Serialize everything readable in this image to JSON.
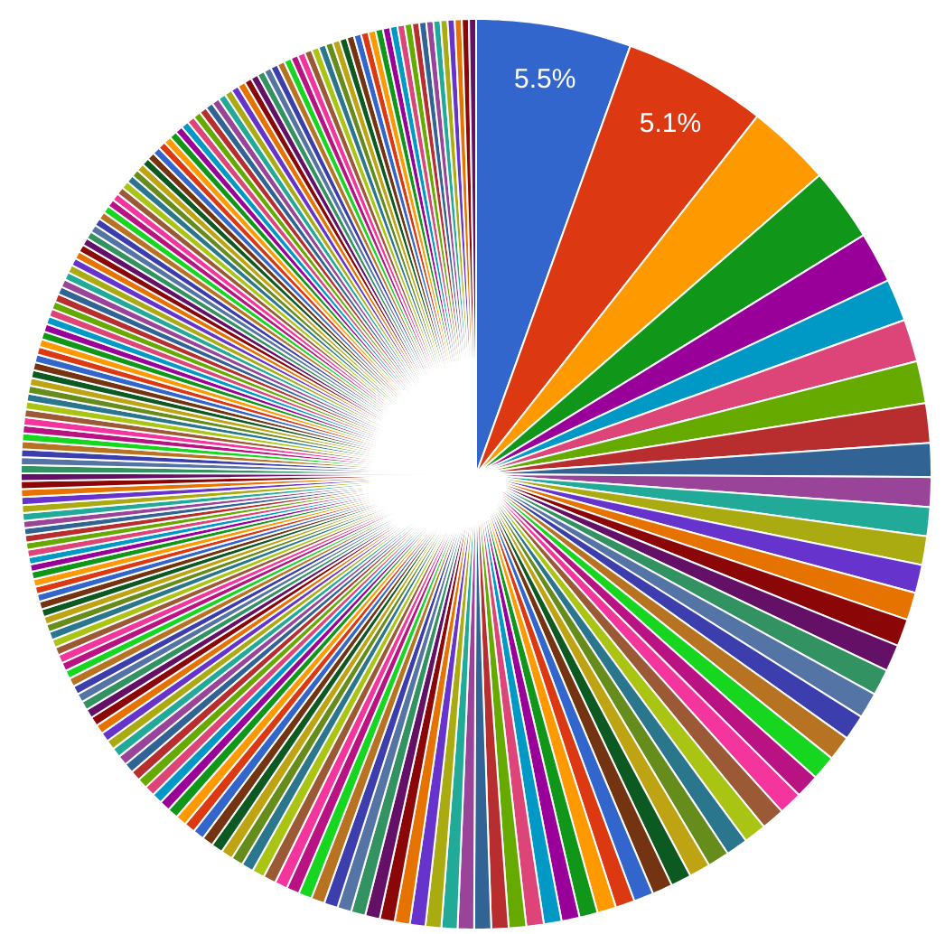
{
  "chart_data": {
    "type": "pie",
    "categories": [
      null,
      null,
      null,
      null,
      null,
      null,
      null,
      null,
      null,
      null,
      null,
      null,
      null,
      null,
      null,
      null,
      null,
      null,
      null,
      null,
      null,
      null,
      null,
      null,
      null,
      null,
      null,
      null,
      null,
      null,
      null,
      null,
      null,
      null,
      null,
      null,
      null,
      null,
      null,
      null,
      null,
      null,
      null,
      null,
      null,
      null,
      null,
      null,
      null,
      null,
      null,
      null,
      null,
      null,
      null,
      null,
      null,
      null,
      null,
      null,
      null,
      null,
      null,
      null,
      null,
      null,
      null,
      null,
      null,
      null,
      null,
      null,
      null,
      null,
      null,
      null,
      null,
      null,
      null,
      null,
      null,
      null,
      null,
      null,
      null,
      null,
      null,
      null,
      null,
      null,
      null,
      null,
      null,
      null,
      null,
      null,
      null,
      null,
      null,
      null,
      null,
      null,
      null,
      null,
      null,
      null,
      null,
      null,
      null,
      null,
      null,
      null,
      null,
      null,
      null,
      null,
      null,
      null,
      null,
      null,
      null,
      null,
      null,
      null,
      null,
      null,
      null,
      null,
      null,
      null,
      null,
      null,
      null,
      null,
      null,
      null,
      null,
      null,
      null,
      null,
      null,
      null,
      null,
      null,
      null,
      null,
      null,
      null,
      null,
      null,
      null,
      null,
      null,
      null,
      null,
      null,
      null,
      null,
      null,
      null,
      null,
      null,
      null,
      null,
      null,
      null,
      null,
      null,
      null,
      null,
      null,
      null,
      null,
      null,
      null,
      null,
      null,
      null,
      null,
      null,
      null,
      null,
      null,
      null,
      null,
      null,
      null,
      null,
      null,
      null,
      null,
      null,
      null,
      null,
      null,
      null,
      null,
      null,
      null,
      null,
      null,
      null,
      null
    ],
    "values": [
      5.5,
      5.1,
      3.0,
      2.6,
      1.8,
      1.5,
      1.5,
      1.5,
      1.4,
      1.2,
      1.05,
      1.03,
      1.02,
      1.0,
      0.98,
      0.97,
      0.95,
      0.93,
      0.92,
      0.9,
      0.88,
      0.87,
      0.85,
      0.83,
      0.82,
      0.8,
      0.78,
      0.77,
      0.75,
      0.73,
      0.72,
      0.7,
      0.68,
      0.67,
      0.65,
      0.64,
      0.63,
      0.62,
      0.62,
      0.61,
      0.6,
      0.58,
      0.57,
      0.56,
      0.55,
      0.54,
      0.53,
      0.52,
      0.51,
      0.5,
      0.49,
      0.48,
      0.47,
      0.46,
      0.45,
      0.45,
      0.44,
      0.43,
      0.42,
      0.42,
      0.41,
      0.4,
      0.4,
      0.39,
      0.39,
      0.38,
      0.38,
      0.37,
      0.37,
      0.36,
      0.36,
      0.35,
      0.35,
      0.34,
      0.34,
      0.33,
      0.33,
      0.33,
      0.32,
      0.32,
      0.31,
      0.31,
      0.31,
      0.3,
      0.3,
      0.3,
      0.29,
      0.29,
      0.29,
      0.28,
      0.28,
      0.28,
      0.28,
      0.27,
      0.27,
      0.27,
      0.27,
      0.26,
      0.26,
      0.26,
      0.26,
      0.26,
      0.25,
      0.25,
      0.28,
      0.28,
      0.28,
      0.28,
      0.28,
      0.28,
      0.28,
      0.28,
      0.28,
      0.28,
      0.28,
      0.28,
      0.28,
      0.28,
      0.28,
      0.28,
      0.28,
      0.28,
      0.28,
      0.28,
      0.28,
      0.28,
      0.28,
      0.28,
      0.28,
      0.28,
      0.28,
      0.28,
      0.28,
      0.28,
      0.28,
      0.28,
      0.28,
      0.27,
      0.27,
      0.27,
      0.27,
      0.27,
      0.27,
      0.27,
      0.27,
      0.27,
      0.27,
      0.27,
      0.27,
      0.27,
      0.27,
      0.27,
      0.27,
      0.27,
      0.27,
      0.27,
      0.27,
      0.27,
      0.27,
      0.27,
      0.27,
      0.27,
      0.27,
      0.27,
      0.27,
      0.27,
      0.27,
      0.27,
      0.27,
      0.27,
      0.26,
      0.26,
      0.26,
      0.26,
      0.26,
      0.26,
      0.26,
      0.26,
      0.26,
      0.26,
      0.26,
      0.26,
      0.26,
      0.26,
      0.26,
      0.26,
      0.26,
      0.26,
      0.26,
      0.26,
      0.26,
      0.26,
      0.26,
      0.26,
      0.25,
      0.25,
      0.25,
      0.25,
      0.25,
      0.25,
      0.25,
      0.25,
      0.25
    ],
    "colors": [
      "#3366cc",
      "#dc3912",
      "#ff9900",
      "#109618",
      "#990099",
      "#0099c6",
      "#dd4477",
      "#66aa00",
      "#b82e2e",
      "#316395",
      "#994499",
      "#22aa99",
      "#aaaa11",
      "#6633cc",
      "#e67300",
      "#8b0707",
      "#651067",
      "#329262",
      "#5574a6",
      "#3b3eac",
      "#b77322",
      "#16d620",
      "#b91383",
      "#f4359e",
      "#9c5935",
      "#a9c413",
      "#2a778d",
      "#668d1c",
      "#bea413",
      "#0c5922",
      "#743411",
      "#3366cc",
      "#dc3912",
      "#ff9900",
      "#109618",
      "#990099",
      "#0099c6",
      "#dd4477",
      "#66aa00",
      "#b82e2e",
      "#316395",
      "#994499",
      "#22aa99",
      "#aaaa11",
      "#6633cc",
      "#e67300",
      "#8b0707",
      "#651067",
      "#329262",
      "#5574a6",
      "#3b3eac",
      "#b77322",
      "#16d620",
      "#b91383",
      "#f4359e",
      "#9c5935",
      "#a9c413",
      "#2a778d",
      "#668d1c",
      "#bea413",
      "#0c5922",
      "#743411",
      "#3366cc",
      "#dc3912",
      "#ff9900",
      "#109618",
      "#990099",
      "#0099c6",
      "#dd4477",
      "#66aa00",
      "#b82e2e",
      "#316395",
      "#994499",
      "#22aa99",
      "#aaaa11",
      "#6633cc",
      "#e67300",
      "#8b0707",
      "#651067",
      "#329262",
      "#5574a6",
      "#3b3eac",
      "#b77322",
      "#16d620",
      "#b91383",
      "#f4359e",
      "#9c5935",
      "#a9c413",
      "#2a778d",
      "#668d1c",
      "#bea413",
      "#0c5922",
      "#743411",
      "#3366cc",
      "#dc3912",
      "#ff9900",
      "#109618",
      "#990099",
      "#0099c6",
      "#dd4477",
      "#66aa00",
      "#b82e2e",
      "#316395",
      "#994499",
      "#22aa99",
      "#aaaa11",
      "#6633cc",
      "#e67300",
      "#8b0707",
      "#651067",
      "#329262",
      "#5574a6",
      "#3b3eac",
      "#b77322",
      "#16d620",
      "#b91383",
      "#f4359e",
      "#9c5935",
      "#a9c413",
      "#2a778d",
      "#668d1c",
      "#bea413",
      "#0c5922",
      "#743411",
      "#3366cc",
      "#dc3912",
      "#ff9900",
      "#109618",
      "#990099",
      "#0099c6",
      "#dd4477",
      "#66aa00",
      "#b82e2e",
      "#316395",
      "#994499",
      "#22aa99",
      "#aaaa11",
      "#6633cc",
      "#e67300",
      "#8b0707",
      "#651067",
      "#329262",
      "#5574a6",
      "#3b3eac",
      "#b77322",
      "#16d620",
      "#b91383",
      "#f4359e",
      "#9c5935",
      "#a9c413",
      "#2a778d",
      "#668d1c",
      "#bea413",
      "#0c5922",
      "#743411",
      "#3366cc",
      "#dc3912",
      "#ff9900",
      "#109618",
      "#990099",
      "#0099c6",
      "#dd4477",
      "#66aa00",
      "#b82e2e",
      "#316395",
      "#994499",
      "#22aa99",
      "#aaaa11",
      "#6633cc",
      "#e67300",
      "#8b0707",
      "#651067",
      "#329262",
      "#5574a6",
      "#3b3eac",
      "#b77322",
      "#16d620",
      "#b91383",
      "#f4359e",
      "#9c5935",
      "#a9c413",
      "#2a778d",
      "#668d1c",
      "#bea413",
      "#0c5922",
      "#743411",
      "#3366cc",
      "#dc3912",
      "#ff9900",
      "#109618",
      "#990099",
      "#0099c6",
      "#dd4477",
      "#66aa00",
      "#b82e2e",
      "#316395",
      "#994499",
      "#22aa99",
      "#aaaa11",
      "#6633cc",
      "#e67300",
      "#8b0707",
      "#651067"
    ],
    "value_labels": [
      "5.5%",
      "5.1%",
      null,
      null,
      null,
      null,
      null,
      null,
      null,
      null,
      null,
      null,
      null,
      null,
      null,
      null,
      null,
      null,
      null,
      null,
      null,
      null,
      null,
      null,
      null,
      null,
      null,
      null,
      null,
      null,
      null,
      null,
      null,
      null,
      null,
      null,
      null,
      null,
      null,
      null,
      null,
      null,
      null,
      null,
      null,
      null,
      null,
      null,
      null,
      null,
      null,
      null,
      null,
      null,
      null,
      null,
      null,
      null,
      null,
      null,
      null,
      null,
      null,
      null,
      null,
      null,
      null,
      null,
      null,
      null,
      null,
      null,
      null,
      null,
      null,
      null,
      null,
      null,
      null,
      null,
      null,
      null,
      null,
      null,
      null,
      null,
      null,
      null,
      null,
      null,
      null,
      null,
      null,
      null,
      null,
      null,
      null,
      null,
      null,
      null,
      null,
      null,
      null,
      null,
      null,
      null,
      null,
      null,
      null,
      null,
      null,
      null,
      null,
      null,
      null,
      null,
      null,
      null,
      null,
      null,
      null,
      null,
      null,
      null,
      null,
      null,
      null,
      null,
      null,
      null,
      null,
      null,
      null,
      null,
      null,
      null,
      null,
      null,
      null,
      null,
      null,
      null,
      null,
      null,
      null,
      null,
      null,
      null,
      null,
      null,
      null,
      null,
      null,
      null,
      null,
      null,
      null,
      null,
      null,
      null,
      null,
      null,
      null,
      null,
      null,
      null,
      null,
      null,
      null,
      null,
      null,
      null,
      null,
      null,
      null,
      null,
      null,
      null,
      null,
      null,
      null,
      null,
      null,
      null,
      null,
      null,
      null,
      null,
      null,
      null,
      null,
      null,
      null,
      null,
      null,
      null,
      null,
      null,
      null,
      null,
      null,
      null,
      null
    ]
  }
}
